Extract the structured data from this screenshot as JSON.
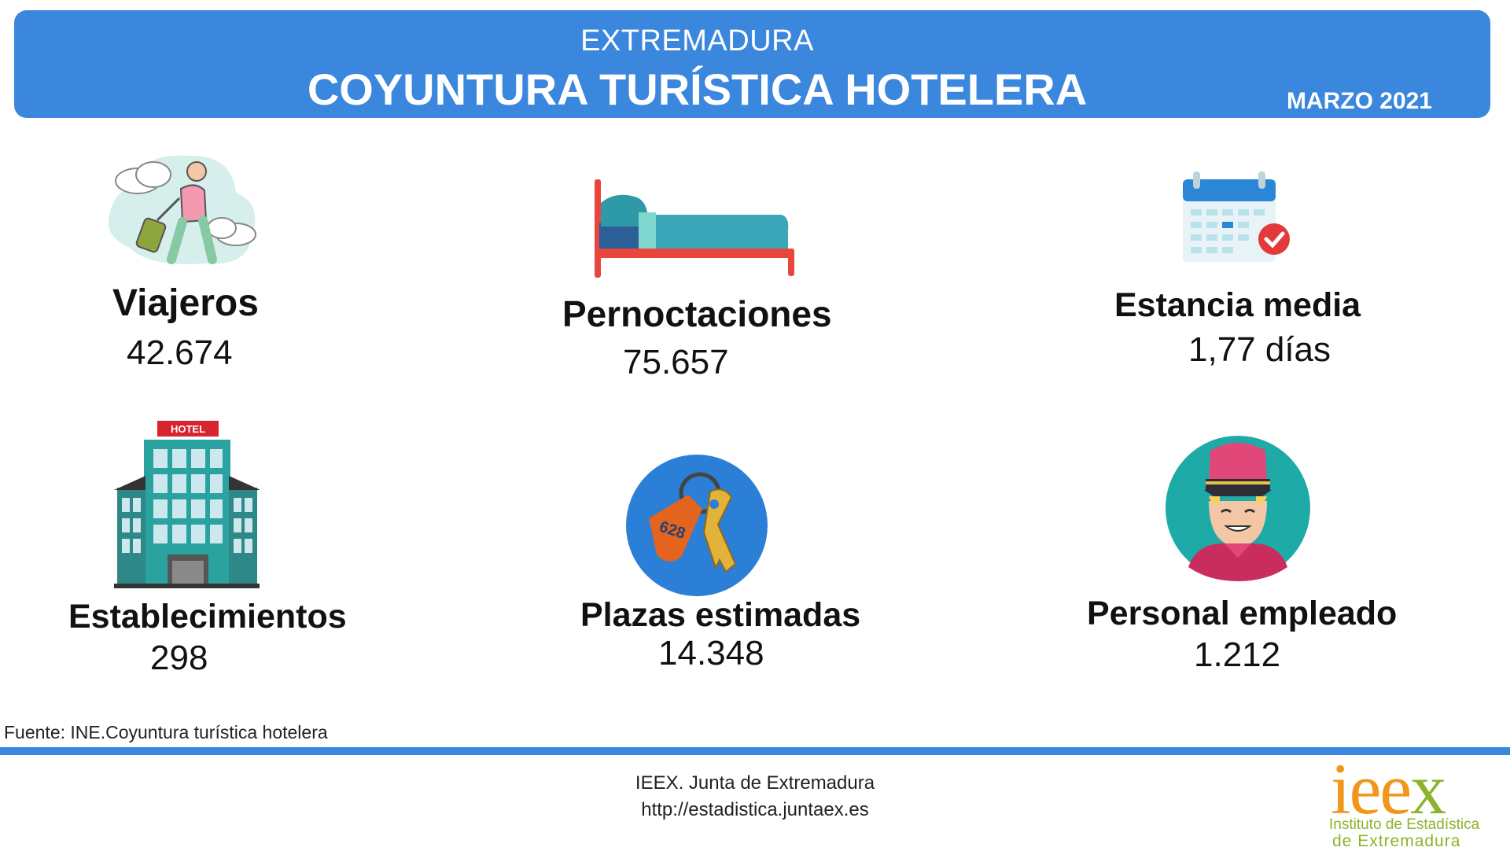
{
  "header": {
    "region": "EXTREMADURA",
    "title": "COYUNTURA TURÍSTICA HOTELERA",
    "date": "MARZO 2021"
  },
  "stats": {
    "viajeros": {
      "label": "Viajeros",
      "value": "42.674",
      "icon": "traveler-icon"
    },
    "pernoctaciones": {
      "label": "Pernoctaciones",
      "value": "75.657",
      "icon": "bed-icon"
    },
    "estancia": {
      "label": "Estancia media",
      "value": "1,77 días",
      "icon": "calendar-icon"
    },
    "establecimientos": {
      "label": "Establecimientos",
      "value": "298",
      "icon": "hotel-building-icon",
      "sign": "HOTEL"
    },
    "plazas": {
      "label": "Plazas estimadas",
      "value": "14.348",
      "icon": "room-key-icon",
      "key_tag": "628"
    },
    "personal": {
      "label": "Personal empleado",
      "value": "1.212",
      "icon": "bellboy-icon"
    }
  },
  "source": "Fuente: INE.Coyuntura turística hotelera",
  "footer": {
    "line1": "IEEX. Junta de Extremadura",
    "line2": "http://estadistica.juntaex.es"
  },
  "logo": {
    "mark_i1": "i",
    "mark_ee": "ee",
    "mark_x": "x",
    "line1": "Instituto de Estadística",
    "line2": "de Extremadura"
  },
  "colors": {
    "banner": "#3a87dd",
    "logo_orange": "#f2961b",
    "logo_green": "#8cb32b"
  }
}
